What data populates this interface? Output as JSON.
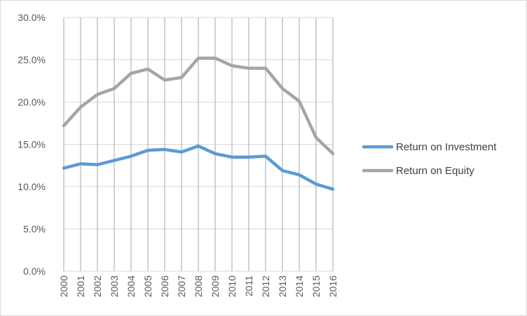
{
  "chart_data": {
    "type": "line",
    "title": "",
    "xlabel": "",
    "ylabel": "",
    "ylim": [
      0,
      30
    ],
    "y_ticks": [
      "0.0%",
      "5.0%",
      "10.0%",
      "15.0%",
      "20.0%",
      "25.0%",
      "30.0%"
    ],
    "grid": "vertical gridlines at each category; horizontal gridlines at y ticks",
    "legend": "right",
    "categories": [
      "2000",
      "2001",
      "2002",
      "2003",
      "2004",
      "2005",
      "2006",
      "2007",
      "2008",
      "2009",
      "2010",
      "2011",
      "2012",
      "2013",
      "2014",
      "2015",
      "2016"
    ],
    "series": [
      {
        "name": "Return on Investment",
        "color": "#5b9bd5",
        "values": [
          12.2,
          12.7,
          12.6,
          13.1,
          13.6,
          14.3,
          14.4,
          14.1,
          14.8,
          13.9,
          13.5,
          13.5,
          13.6,
          11.9,
          11.4,
          10.3,
          9.7
        ]
      },
      {
        "name": "Return on Equity",
        "color": "#a5a5a5",
        "values": [
          17.2,
          19.4,
          20.9,
          21.6,
          23.4,
          23.9,
          22.6,
          22.9,
          25.2,
          25.2,
          24.3,
          24.0,
          24.0,
          21.6,
          20.1,
          15.8,
          13.9
        ]
      }
    ]
  }
}
